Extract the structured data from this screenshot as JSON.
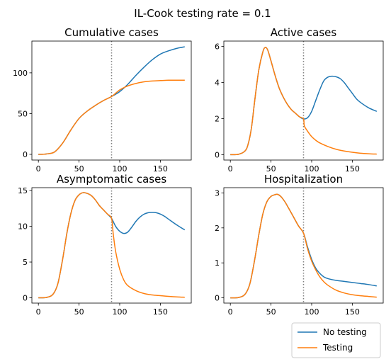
{
  "figure": {
    "suptitle": "IL-Cook testing rate = 0.1",
    "legend": {
      "placement": "lower-right",
      "entries": [
        {
          "label": "No testing",
          "color": "#1f77b4"
        },
        {
          "label": "Testing",
          "color": "#ff7f0e"
        }
      ]
    }
  },
  "chart_data": [
    {
      "type": "line",
      "title": "Cumulative cases",
      "xlim": [
        -8,
        188
      ],
      "ylim": [
        -7,
        139
      ],
      "xticks": [
        0,
        50,
        100,
        150
      ],
      "yticks": [
        0,
        50,
        100
      ],
      "vline": 90,
      "series": [
        {
          "name": "No testing",
          "color": "#1f77b4",
          "points": [
            [
              0,
              0
            ],
            [
              10,
              0.5
            ],
            [
              20,
              3
            ],
            [
              30,
              14
            ],
            [
              40,
              30
            ],
            [
              50,
              44
            ],
            [
              60,
              53
            ],
            [
              70,
              60
            ],
            [
              80,
              66
            ],
            [
              90,
              71
            ],
            [
              100,
              77
            ],
            [
              110,
              86
            ],
            [
              120,
              97
            ],
            [
              130,
              107
            ],
            [
              140,
              116
            ],
            [
              150,
              123
            ],
            [
              160,
              127
            ],
            [
              170,
              130
            ],
            [
              180,
              132
            ]
          ]
        },
        {
          "name": "Testing",
          "color": "#ff7f0e",
          "points": [
            [
              0,
              0
            ],
            [
              10,
              0.5
            ],
            [
              20,
              3
            ],
            [
              30,
              14
            ],
            [
              40,
              30
            ],
            [
              50,
              44
            ],
            [
              60,
              53
            ],
            [
              70,
              60
            ],
            [
              80,
              66
            ],
            [
              90,
              71
            ],
            [
              100,
              79
            ],
            [
              110,
              84
            ],
            [
              120,
              87
            ],
            [
              130,
              89
            ],
            [
              140,
              90
            ],
            [
              150,
              90.5
            ],
            [
              160,
              91
            ],
            [
              170,
              91
            ],
            [
              180,
              91
            ]
          ]
        }
      ]
    },
    {
      "type": "line",
      "title": "Active cases",
      "xlim": [
        -8,
        188
      ],
      "ylim": [
        -0.3,
        6.3
      ],
      "xticks": [
        0,
        50,
        100,
        150
      ],
      "yticks": [
        0,
        2,
        4,
        6
      ],
      "vline": 90,
      "series": [
        {
          "name": "No testing",
          "color": "#1f77b4",
          "points": [
            [
              0,
              0
            ],
            [
              10,
              0.02
            ],
            [
              18,
              0.2
            ],
            [
              22,
              0.6
            ],
            [
              26,
              1.5
            ],
            [
              30,
              3
            ],
            [
              35,
              4.7
            ],
            [
              40,
              5.7
            ],
            [
              43,
              5.95
            ],
            [
              46,
              5.8
            ],
            [
              50,
              5.2
            ],
            [
              55,
              4.4
            ],
            [
              60,
              3.7
            ],
            [
              65,
              3.2
            ],
            [
              70,
              2.8
            ],
            [
              75,
              2.5
            ],
            [
              80,
              2.3
            ],
            [
              85,
              2.1
            ],
            [
              90,
              1.98
            ],
            [
              95,
              2.05
            ],
            [
              100,
              2.4
            ],
            [
              105,
              3.0
            ],
            [
              110,
              3.6
            ],
            [
              115,
              4.1
            ],
            [
              120,
              4.3
            ],
            [
              125,
              4.35
            ],
            [
              130,
              4.32
            ],
            [
              135,
              4.22
            ],
            [
              140,
              4.0
            ],
            [
              145,
              3.7
            ],
            [
              150,
              3.4
            ],
            [
              155,
              3.1
            ],
            [
              160,
              2.9
            ],
            [
              170,
              2.6
            ],
            [
              180,
              2.4
            ]
          ]
        },
        {
          "name": "Testing",
          "color": "#ff7f0e",
          "points": [
            [
              0,
              0
            ],
            [
              10,
              0.02
            ],
            [
              18,
              0.2
            ],
            [
              22,
              0.6
            ],
            [
              26,
              1.5
            ],
            [
              30,
              3
            ],
            [
              35,
              4.7
            ],
            [
              40,
              5.7
            ],
            [
              43,
              5.95
            ],
            [
              46,
              5.8
            ],
            [
              50,
              5.2
            ],
            [
              55,
              4.4
            ],
            [
              60,
              3.7
            ],
            [
              65,
              3.2
            ],
            [
              70,
              2.8
            ],
            [
              75,
              2.5
            ],
            [
              80,
              2.3
            ],
            [
              85,
              2.1
            ],
            [
              90,
              1.98
            ],
            [
              91,
              1.6
            ],
            [
              95,
              1.3
            ],
            [
              100,
              1.0
            ],
            [
              105,
              0.8
            ],
            [
              110,
              0.65
            ],
            [
              120,
              0.45
            ],
            [
              130,
              0.3
            ],
            [
              140,
              0.2
            ],
            [
              150,
              0.13
            ],
            [
              160,
              0.08
            ],
            [
              170,
              0.05
            ],
            [
              180,
              0.03
            ]
          ]
        }
      ]
    },
    {
      "type": "line",
      "title": "Asymptomatic cases",
      "xlim": [
        -8,
        188
      ],
      "ylim": [
        -0.74,
        15.4
      ],
      "xticks": [
        0,
        50,
        100,
        150
      ],
      "yticks": [
        0,
        5,
        10,
        15
      ],
      "vline": 90,
      "series": [
        {
          "name": "No testing",
          "color": "#1f77b4",
          "points": [
            [
              0,
              0
            ],
            [
              10,
              0.05
            ],
            [
              18,
              0.5
            ],
            [
              24,
              2
            ],
            [
              30,
              5.5
            ],
            [
              35,
              9
            ],
            [
              40,
              11.8
            ],
            [
              45,
              13.6
            ],
            [
              50,
              14.4
            ],
            [
              55,
              14.7
            ],
            [
              60,
              14.6
            ],
            [
              65,
              14.3
            ],
            [
              70,
              13.7
            ],
            [
              75,
              12.9
            ],
            [
              80,
              12.3
            ],
            [
              85,
              11.7
            ],
            [
              90,
              11.1
            ],
            [
              95,
              10
            ],
            [
              100,
              9.3
            ],
            [
              105,
              9.0
            ],
            [
              110,
              9.2
            ],
            [
              115,
              9.9
            ],
            [
              120,
              10.7
            ],
            [
              125,
              11.3
            ],
            [
              130,
              11.7
            ],
            [
              135,
              11.9
            ],
            [
              140,
              11.95
            ],
            [
              145,
              11.9
            ],
            [
              150,
              11.7
            ],
            [
              155,
              11.4
            ],
            [
              160,
              11.0
            ],
            [
              170,
              10.2
            ],
            [
              180,
              9.5
            ]
          ]
        },
        {
          "name": "Testing",
          "color": "#ff7f0e",
          "points": [
            [
              0,
              0
            ],
            [
              10,
              0.05
            ],
            [
              18,
              0.5
            ],
            [
              24,
              2
            ],
            [
              30,
              5.5
            ],
            [
              35,
              9
            ],
            [
              40,
              11.8
            ],
            [
              45,
              13.6
            ],
            [
              50,
              14.4
            ],
            [
              55,
              14.7
            ],
            [
              60,
              14.6
            ],
            [
              65,
              14.3
            ],
            [
              70,
              13.7
            ],
            [
              75,
              12.9
            ],
            [
              80,
              12.3
            ],
            [
              85,
              11.7
            ],
            [
              90,
              11.1
            ],
            [
              92,
              9
            ],
            [
              95,
              6.5
            ],
            [
              100,
              4
            ],
            [
              105,
              2.5
            ],
            [
              110,
              1.7
            ],
            [
              120,
              1.0
            ],
            [
              130,
              0.6
            ],
            [
              140,
              0.4
            ],
            [
              150,
              0.3
            ],
            [
              160,
              0.2
            ],
            [
              170,
              0.12
            ],
            [
              180,
              0.08
            ]
          ]
        }
      ]
    },
    {
      "type": "line",
      "title": "Hospitalization",
      "xlim": [
        -8,
        188
      ],
      "ylim": [
        -0.15,
        3.15
      ],
      "xticks": [
        0,
        50,
        100,
        150
      ],
      "yticks": [
        0,
        1,
        2,
        3
      ],
      "vline": 90,
      "series": [
        {
          "name": "No testing",
          "color": "#1f77b4",
          "points": [
            [
              0,
              0
            ],
            [
              10,
              0.01
            ],
            [
              18,
              0.1
            ],
            [
              24,
              0.4
            ],
            [
              30,
              1.1
            ],
            [
              35,
              1.8
            ],
            [
              40,
              2.4
            ],
            [
              45,
              2.75
            ],
            [
              50,
              2.9
            ],
            [
              55,
              2.95
            ],
            [
              58,
              2.96
            ],
            [
              62,
              2.9
            ],
            [
              67,
              2.75
            ],
            [
              72,
              2.55
            ],
            [
              78,
              2.3
            ],
            [
              84,
              2.05
            ],
            [
              90,
              1.85
            ],
            [
              95,
              1.45
            ],
            [
              100,
              1.1
            ],
            [
              105,
              0.85
            ],
            [
              110,
              0.7
            ],
            [
              115,
              0.6
            ],
            [
              120,
              0.55
            ],
            [
              130,
              0.5
            ],
            [
              140,
              0.47
            ],
            [
              150,
              0.44
            ],
            [
              160,
              0.41
            ],
            [
              170,
              0.38
            ],
            [
              180,
              0.34
            ]
          ]
        },
        {
          "name": "Testing",
          "color": "#ff7f0e",
          "points": [
            [
              0,
              0
            ],
            [
              10,
              0.01
            ],
            [
              18,
              0.1
            ],
            [
              24,
              0.4
            ],
            [
              30,
              1.1
            ],
            [
              35,
              1.8
            ],
            [
              40,
              2.4
            ],
            [
              45,
              2.75
            ],
            [
              50,
              2.9
            ],
            [
              55,
              2.95
            ],
            [
              58,
              2.96
            ],
            [
              62,
              2.9
            ],
            [
              67,
              2.75
            ],
            [
              72,
              2.55
            ],
            [
              78,
              2.3
            ],
            [
              84,
              2.05
            ],
            [
              90,
              1.85
            ],
            [
              95,
              1.4
            ],
            [
              100,
              1.05
            ],
            [
              105,
              0.8
            ],
            [
              110,
              0.6
            ],
            [
              115,
              0.46
            ],
            [
              120,
              0.36
            ],
            [
              130,
              0.22
            ],
            [
              140,
              0.14
            ],
            [
              150,
              0.09
            ],
            [
              160,
              0.06
            ],
            [
              170,
              0.04
            ],
            [
              180,
              0.02
            ]
          ]
        }
      ]
    }
  ]
}
